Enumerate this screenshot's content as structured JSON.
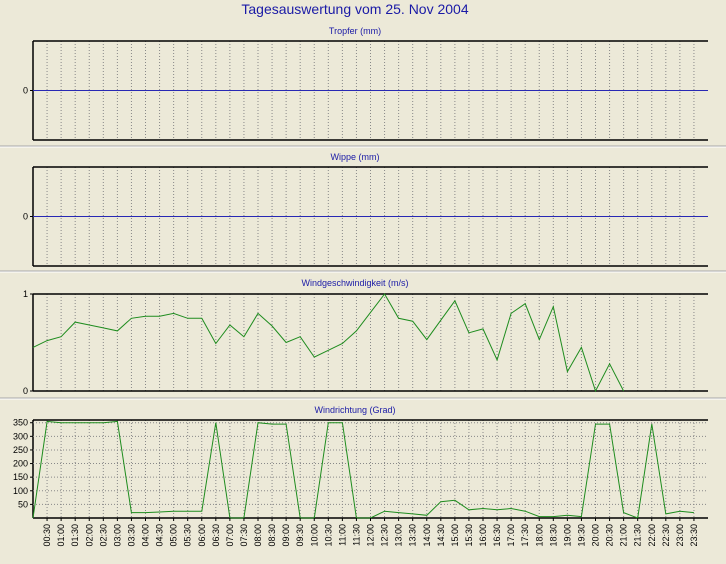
{
  "page_title": "Tagesauswertung vom 25. Nov 2004",
  "colors": {
    "background": "#ECE9D8",
    "title": "#1A1AA6",
    "zero_line": "#2828B4",
    "series": "#1E8C1E",
    "grid": "#888888",
    "separator": "#A8A8A8"
  },
  "chart_data": [
    {
      "type": "line",
      "title": "Tropfer (mm)",
      "xlabel": "",
      "ylabel": "",
      "yticks": [
        "0"
      ],
      "ylim": [
        -1,
        1
      ],
      "zero_line": true,
      "grid": true,
      "series": [
        {
          "values": []
        }
      ]
    },
    {
      "type": "line",
      "title": "Wippe (mm)",
      "xlabel": "",
      "ylabel": "",
      "yticks": [
        "0"
      ],
      "ylim": [
        -1,
        1
      ],
      "zero_line": true,
      "grid": true,
      "series": [
        {
          "values": []
        }
      ]
    },
    {
      "type": "line",
      "title": "Windgeschwindigkeit (m/s)",
      "xlabel": "",
      "ylabel": "",
      "yticks": [
        "1",
        "0"
      ],
      "ylim": [
        0,
        1
      ],
      "grid": true,
      "x_step_minutes": 30,
      "series": [
        {
          "values": [
            0.45,
            0.52,
            0.56,
            0.71,
            0.68,
            0.65,
            0.62,
            0.75,
            0.77,
            0.77,
            0.8,
            0.75,
            0.75,
            0.49,
            0.68,
            0.56,
            0.8,
            0.67,
            0.5,
            0.56,
            0.35,
            0.42,
            0.49,
            0.62,
            0.81,
            1.0,
            0.75,
            0.72,
            0.53,
            0.73,
            0.93,
            0.6,
            0.64,
            0.32,
            0.8,
            0.9,
            0.53,
            0.87,
            0.2,
            0.45,
            0.0,
            0.28,
            0.0
          ]
        }
      ]
    },
    {
      "type": "line",
      "title": "Windrichtung (Grad)",
      "xlabel": "",
      "ylabel": "",
      "yticks": [
        "350",
        "300",
        "250",
        "200",
        "150",
        "100",
        "50"
      ],
      "ylim": [
        0,
        360
      ],
      "grid": true,
      "x_step_minutes": 30,
      "series": [
        {
          "values": [
            0,
            355,
            350,
            350,
            350,
            350,
            355,
            20,
            20,
            22,
            25,
            25,
            25,
            350,
            0,
            0,
            350,
            345,
            345,
            0,
            0,
            350,
            350,
            0,
            0,
            25,
            20,
            15,
            10,
            60,
            65,
            30,
            35,
            30,
            35,
            25,
            5,
            5,
            10,
            5,
            345,
            345,
            20,
            0,
            345,
            15,
            25,
            20
          ]
        }
      ],
      "x_tick_labels": [
        "00:30",
        "01:00",
        "01:30",
        "02:00",
        "02:30",
        "03:00",
        "03:30",
        "04:00",
        "04:30",
        "05:00",
        "05:30",
        "06:00",
        "06:30",
        "07:00",
        "07:30",
        "08:00",
        "08:30",
        "09:00",
        "09:30",
        "10:00",
        "10:30",
        "11:00",
        "11:30",
        "12:00",
        "12:30",
        "13:00",
        "13:30",
        "14:00",
        "14:30",
        "15:00",
        "15:30",
        "16:00",
        "16:30",
        "17:00",
        "17:30",
        "18:00",
        "18:30",
        "19:00",
        "19:30",
        "20:00",
        "20:30",
        "21:00",
        "21:30",
        "22:00",
        "22:30",
        "23:00",
        "23:30"
      ]
    }
  ]
}
